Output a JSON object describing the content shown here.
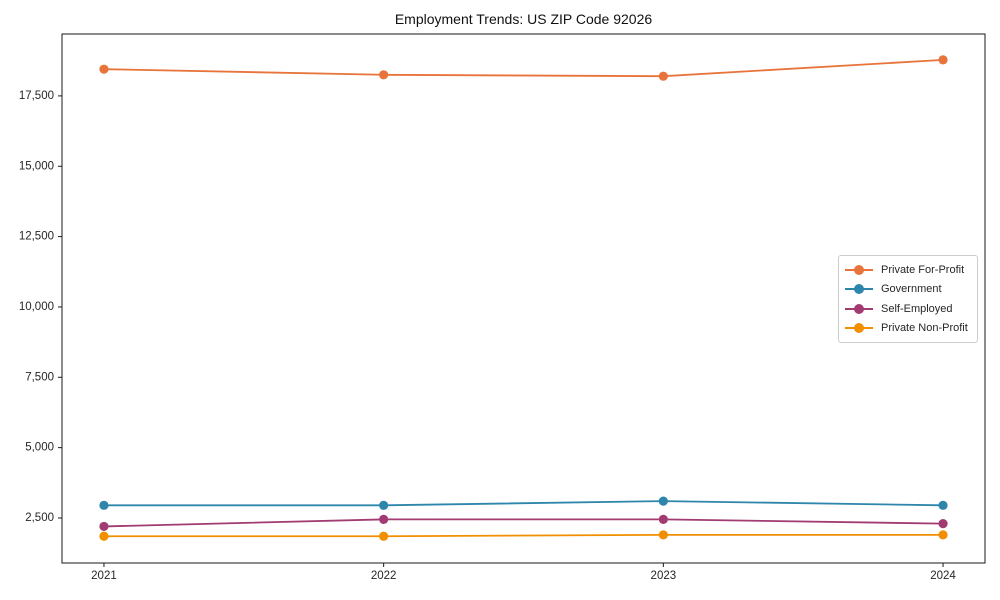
{
  "chart_data": {
    "type": "line",
    "title": "Employment Trends: US ZIP Code 92026",
    "xlabel": "",
    "ylabel": "",
    "x": [
      2021,
      2022,
      2023,
      2024
    ],
    "xtick_labels": [
      "2021",
      "2022",
      "2023",
      "2024"
    ],
    "yticks": [
      2500,
      5000,
      7500,
      10000,
      12500,
      15000,
      17500
    ],
    "ytick_labels": [
      "2,500",
      "5,000",
      "7,500",
      "10,000",
      "12,500",
      "15,000",
      "17,500"
    ],
    "xlim": [
      2020.85,
      2024.15
    ],
    "ylim": [
      900,
      19700
    ],
    "grid": false,
    "legend_position": "center-right",
    "series": [
      {
        "name": "Private For-Profit",
        "color": "#E8743B",
        "values": [
          18450,
          18250,
          18200,
          18780
        ]
      },
      {
        "name": "Government",
        "color": "#2E86AB",
        "values": [
          2950,
          2950,
          3100,
          2950
        ]
      },
      {
        "name": "Self-Employed",
        "color": "#A23B72",
        "values": [
          2200,
          2450,
          2450,
          2300
        ]
      },
      {
        "name": "Private Non-Profit",
        "color": "#F18F01",
        "values": [
          1850,
          1850,
          1900,
          1900
        ]
      }
    ]
  }
}
